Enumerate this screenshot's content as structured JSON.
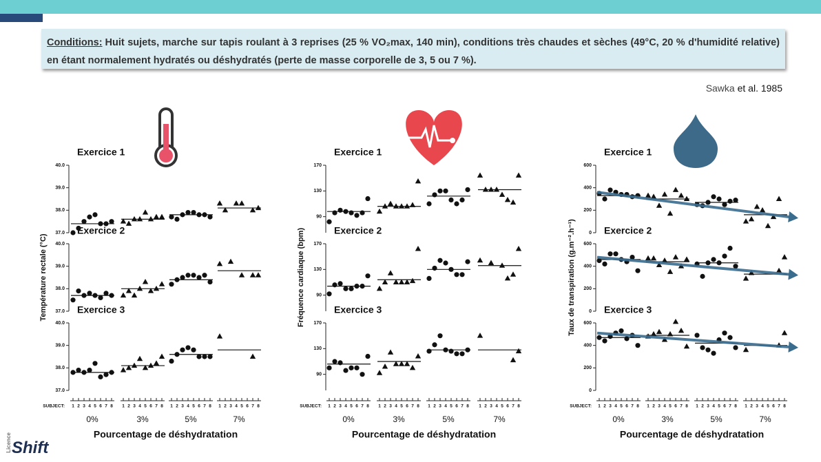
{
  "header": {
    "conditions_label": "Conditions:",
    "conditions_text": "Huit sujets, marche sur tapis roulant à 3 reprises (25 % VO₂max, 140 min), conditions très chaudes et sèches (49°C, 20 % d'humidité relative) en étant normalement hydratés ou déshydratés (perte de masse corporelle de 3, 5 ou 7 %).",
    "citation_author": "Sawka",
    "citation_rest": "et al. 1985"
  },
  "logo": {
    "small": "Licence",
    "name": "Shift"
  },
  "chart_data": [
    {
      "type": "scatter",
      "title": "Exercice 1",
      "ylim": [
        37,
        40
      ],
      "yticks": [
        {
          "value": 37,
          "label": "37.0"
        },
        {
          "value": 38,
          "label": "38.0"
        },
        {
          "value": 39,
          "label": "39.0"
        },
        {
          "value": 40,
          "label": "40.0"
        }
      ],
      "series": [
        {
          "marker": "circle",
          "color": "#111",
          "values": [
            37.0,
            37.2,
            37.5,
            37.7,
            37.8,
            37.4,
            37.4,
            37.5
          ],
          "mean": 37.4
        },
        {
          "marker": "triangle",
          "color": "#111",
          "values": [
            37.5,
            37.4,
            37.6,
            37.6,
            37.9,
            37.6,
            37.7,
            37.7
          ],
          "mean": 37.6
        },
        {
          "marker": "circle",
          "color": "#111",
          "values": [
            37.7,
            37.6,
            37.8,
            37.9,
            37.9,
            37.8,
            37.8,
            37.7
          ],
          "mean": 37.8
        },
        {
          "marker": "triangle",
          "color": "#111",
          "values": [
            38.3,
            38.0,
            null,
            38.3,
            38.3,
            null,
            38.0,
            38.1
          ],
          "mean": 38.1
        }
      ]
    },
    {
      "type": "scatter",
      "title": "Exercice 2",
      "ylabel": "Température rectale (°C)",
      "ylim": [
        37,
        40
      ],
      "yticks": [
        {
          "value": 37,
          "label": "37.0"
        },
        {
          "value": 38,
          "label": "38.0"
        },
        {
          "value": 39,
          "label": "39.0"
        },
        {
          "value": 40,
          "label": "40.0"
        }
      ],
      "series": [
        {
          "marker": "circle",
          "color": "#111",
          "values": [
            37.5,
            37.9,
            37.7,
            37.8,
            37.7,
            37.6,
            37.8,
            37.7
          ],
          "mean": 37.7
        },
        {
          "marker": "triangle",
          "color": "#111",
          "values": [
            37.7,
            37.9,
            37.7,
            38.0,
            38.3,
            37.9,
            38.0,
            38.2
          ],
          "mean": 38.0
        },
        {
          "marker": "circle",
          "color": "#111",
          "values": [
            38.2,
            38.4,
            38.5,
            38.6,
            38.6,
            38.5,
            38.6,
            38.3
          ],
          "mean": 38.4
        },
        {
          "marker": "triangle",
          "color": "#111",
          "values": [
            39.1,
            null,
            39.2,
            null,
            38.6,
            null,
            38.6,
            38.6
          ],
          "mean": 38.8
        }
      ]
    },
    {
      "type": "scatter",
      "title": "Exercice 3",
      "ylim": [
        37,
        40
      ],
      "yticks": [
        {
          "value": 37,
          "label": "37.0"
        },
        {
          "value": 38,
          "label": "38.0"
        },
        {
          "value": 39,
          "label": "39.0"
        },
        {
          "value": 40,
          "label": "40.0"
        }
      ],
      "xlabel": "Pourcentage de déshydratation",
      "categories": [
        "0%",
        "3%",
        "5%",
        "7%"
      ],
      "subject_label": "SUBJECT:",
      "subjects": [
        1,
        2,
        3,
        4,
        5,
        6,
        7,
        8
      ],
      "series": [
        {
          "marker": "circle",
          "color": "#111",
          "values": [
            37.8,
            37.9,
            37.8,
            37.9,
            38.2,
            37.6,
            37.7,
            37.8
          ],
          "mean": 37.8
        },
        {
          "marker": "triangle",
          "color": "#111",
          "values": [
            37.9,
            38.0,
            38.1,
            38.4,
            38.0,
            38.1,
            38.2,
            38.5
          ],
          "mean": 38.1
        },
        {
          "marker": "circle",
          "color": "#111",
          "values": [
            38.3,
            38.6,
            38.8,
            38.9,
            38.8,
            38.5,
            38.5,
            38.5
          ],
          "mean": 38.6
        },
        {
          "marker": "triangle",
          "color": "#111",
          "values": [
            39.4,
            null,
            null,
            null,
            null,
            null,
            38.5,
            null
          ],
          "mean": 38.8
        }
      ]
    },
    {
      "type": "scatter",
      "title": "Exercice 1",
      "ylim": [
        65,
        170
      ],
      "yticks": [
        90,
        130,
        170
      ],
      "series": [
        {
          "marker": "circle",
          "color": "#111",
          "values": [
            82,
            96,
            100,
            98,
            96,
            92,
            96,
            118
          ],
          "mean": 98
        },
        {
          "marker": "triangle",
          "color": "#111",
          "values": [
            98,
            106,
            110,
            106,
            106,
            106,
            108,
            145
          ],
          "mean": 106
        },
        {
          "marker": "circle",
          "color": "#111",
          "values": [
            110,
            124,
            130,
            130,
            116,
            110,
            116,
            132
          ],
          "mean": 122
        },
        {
          "marker": "triangle",
          "color": "#111",
          "values": [
            154,
            132,
            132,
            132,
            124,
            116,
            112,
            154
          ],
          "mean": 132
        }
      ]
    },
    {
      "type": "scatter",
      "title": "Exercice 2",
      "ylabel": "Fréquence cardiaque (bpm)",
      "ylim": [
        65,
        170
      ],
      "yticks": [
        90,
        130,
        170
      ],
      "series": [
        {
          "marker": "circle",
          "color": "#111",
          "values": [
            92,
            106,
            108,
            100,
            100,
            104,
            104,
            120
          ],
          "mean": 104
        },
        {
          "marker": "triangle",
          "color": "#111",
          "values": [
            100,
            110,
            124,
            110,
            110,
            110,
            112,
            162
          ],
          "mean": 114
        },
        {
          "marker": "circle",
          "color": "#111",
          "values": [
            116,
            132,
            144,
            140,
            130,
            122,
            122,
            142
          ],
          "mean": 130
        },
        {
          "marker": "triangle",
          "color": "#111",
          "values": [
            144,
            null,
            140,
            null,
            136,
            116,
            122,
            162
          ],
          "mean": 136
        }
      ]
    },
    {
      "type": "scatter",
      "title": "Exercice 3",
      "ylim": [
        65,
        170
      ],
      "yticks": [
        90,
        130,
        170
      ],
      "xlabel": "Pourcentage de déshydratation",
      "categories": [
        "0%",
        "3%",
        "5%",
        "7%"
      ],
      "subject_label": "SUBJECT:",
      "subjects": [
        1,
        2,
        3,
        4,
        5,
        6,
        7,
        8
      ],
      "series": [
        {
          "marker": "circle",
          "color": "#111",
          "values": [
            100,
            110,
            108,
            96,
            100,
            100,
            90,
            118
          ],
          "mean": 106
        },
        {
          "marker": "triangle",
          "color": "#111",
          "values": [
            92,
            102,
            124,
            106,
            106,
            106,
            100,
            118
          ],
          "mean": 110
        },
        {
          "marker": "circle",
          "color": "#111",
          "values": [
            126,
            136,
            150,
            128,
            126,
            122,
            122,
            128
          ],
          "mean": 128
        },
        {
          "marker": "triangle",
          "color": "#111",
          "values": [
            150,
            null,
            null,
            null,
            null,
            null,
            112,
            126
          ],
          "mean": 128
        }
      ]
    },
    {
      "type": "scatter",
      "title": "Exercice 1",
      "ylim": [
        0,
        600
      ],
      "yticks": [
        0,
        200,
        400,
        600
      ],
      "trend": {
        "color": "#3a6c8e",
        "values": [
          360,
          130
        ]
      },
      "series": [
        {
          "marker": "circle",
          "color": "#111",
          "values": [
            350,
            300,
            380,
            360,
            340,
            340,
            320,
            330
          ],
          "mean": 330
        },
        {
          "marker": "triangle",
          "color": "#111",
          "values": [
            330,
            320,
            240,
            340,
            170,
            380,
            330,
            300
          ],
          "mean": 300
        },
        {
          "marker": "circle",
          "color": "#111",
          "values": [
            250,
            240,
            270,
            320,
            300,
            250,
            280,
            290
          ],
          "mean": 270
        },
        {
          "marker": "triangle",
          "color": "#111",
          "values": [
            100,
            120,
            230,
            200,
            60,
            140,
            300,
            null
          ],
          "mean": 160
        }
      ]
    },
    {
      "type": "scatter",
      "title": "Exercice 2",
      "ylabel": "Taux de transpiration (g.m⁻².h⁻¹)",
      "ylim": [
        0,
        600
      ],
      "yticks": [
        0,
        200,
        400,
        600
      ],
      "trend": {
        "color": "#3a6c8e",
        "values": [
          480,
          320
        ]
      },
      "series": [
        {
          "marker": "circle",
          "color": "#111",
          "values": [
            450,
            420,
            510,
            510,
            460,
            440,
            480,
            360
          ],
          "mean": 460
        },
        {
          "marker": "triangle",
          "color": "#111",
          "values": [
            470,
            470,
            410,
            450,
            350,
            480,
            400,
            460
          ],
          "mean": 440
        },
        {
          "marker": "circle",
          "color": "#111",
          "values": [
            420,
            310,
            430,
            460,
            430,
            490,
            560,
            400
          ],
          "mean": 430
        },
        {
          "marker": "triangle",
          "color": "#111",
          "values": [
            290,
            340,
            null,
            null,
            null,
            null,
            360,
            480
          ],
          "mean": 330
        }
      ]
    },
    {
      "type": "scatter",
      "title": "Exercice 3",
      "ylim": [
        0,
        600
      ],
      "yticks": [
        0,
        200,
        400,
        600
      ],
      "trend": {
        "color": "#3a6c8e",
        "values": [
          510,
          380
        ]
      },
      "xlabel": "Pourcentage de déshydratation",
      "categories": [
        "0%",
        "3%",
        "5%",
        "7%"
      ],
      "subject_label": "SUBJECT:",
      "subjects": [
        1,
        2,
        3,
        4,
        5,
        6,
        7,
        8
      ],
      "series": [
        {
          "marker": "circle",
          "color": "#111",
          "values": [
            470,
            440,
            480,
            510,
            530,
            460,
            490,
            400
          ],
          "mean": 470
        },
        {
          "marker": "triangle",
          "color": "#111",
          "values": [
            480,
            500,
            520,
            450,
            500,
            610,
            530,
            390
          ],
          "mean": 490
        },
        {
          "marker": "circle",
          "color": "#111",
          "values": [
            490,
            380,
            360,
            330,
            450,
            510,
            470,
            380
          ],
          "mean": 420
        },
        {
          "marker": "triangle",
          "color": "#111",
          "values": [
            360,
            null,
            null,
            null,
            null,
            null,
            400,
            510
          ],
          "mean": 400
        }
      ]
    }
  ]
}
